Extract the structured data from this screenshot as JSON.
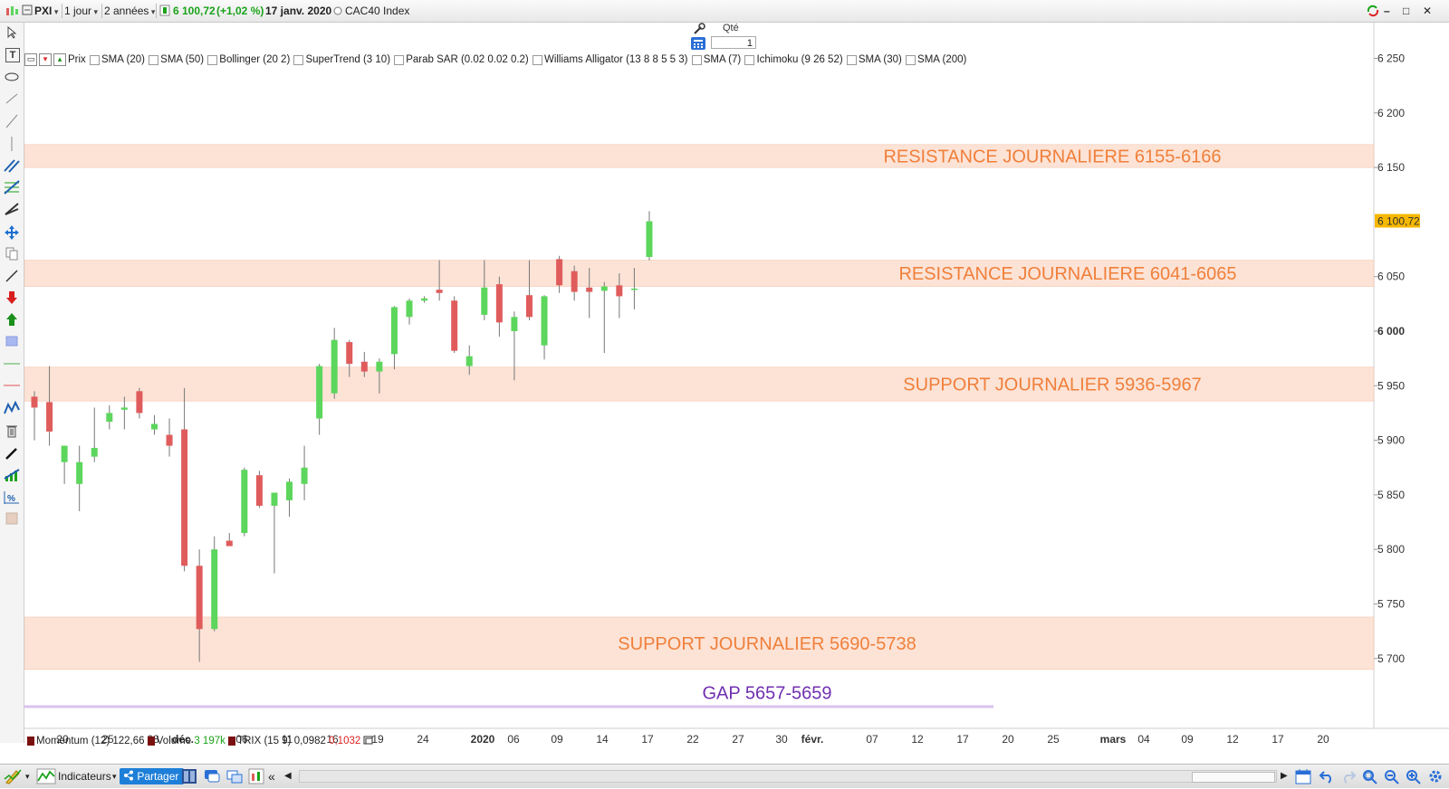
{
  "toolbar": {
    "symbol": "PXI",
    "period": "1 jour",
    "range": "2 années",
    "price": "6 100,72",
    "change": "(+1,02 %)",
    "date": "17 janv. 2020",
    "instrument": "CAC40 Index",
    "minimize": "–",
    "maximize": "□",
    "close": "✕"
  },
  "order": {
    "qty_label": "Qté",
    "qty_value": "1"
  },
  "indicators": [
    "Prix",
    "SMA (20)",
    "SMA (50)",
    "Bollinger (20 2)",
    "SuperTrend (3 10)",
    "Parab SAR (0.02 0.02 0.2)",
    "Williams Alligator (13 8 8 5 5 3)",
    "SMA (7)",
    "Ichimoku (9 26 52)",
    "SMA (30)",
    "SMA (200)"
  ],
  "bottom_indicators": {
    "momentum": "Momentum (12)",
    "momentum_val": "122,66",
    "volume": "Volume",
    "volume_val": "3 197k",
    "trix": "TRIX (15 9)",
    "trix_val1": "0,0982",
    "trix_val2": "0,1032"
  },
  "bottom_toolbar": {
    "indicators": "Indicateurs",
    "share": "Partager"
  },
  "colors": {
    "up": "#5cd65c",
    "down": "#e05c5c",
    "band": "#fbd9c8",
    "band_text": "#f07f3a",
    "gap_text": "#7030b0",
    "gap_line": "#c9a8e0",
    "price_tag": "#f5b800"
  },
  "chart_data": {
    "type": "candlestick",
    "y_axis": {
      "ticks": [
        "6 250",
        "6 200",
        "6 150",
        "6 100,72",
        "6 050",
        "6 000",
        "5 950",
        "5 900",
        "5 850",
        "5 800",
        "5 750",
        "5 700"
      ],
      "range": [
        5650,
        6260
      ]
    },
    "x_labels": [
      "20",
      "25",
      "28",
      "déc.",
      "06",
      "11",
      "16",
      "19",
      "24",
      "2020",
      "06",
      "09",
      "14",
      "17",
      "22",
      "27",
      "30",
      "févr.",
      "07",
      "12",
      "17",
      "20",
      "25",
      "mars",
      "04",
      "09",
      "12",
      "17",
      "20"
    ],
    "bands": [
      {
        "label": "RESISTANCE JOURNALIERE 6155-6166",
        "low": 6155,
        "high": 6166
      },
      {
        "label": "RESISTANCE JOURNALIERE 6041-6065",
        "low": 6041,
        "high": 6065
      },
      {
        "label": "SUPPORT JOURNALIER 5936-5967",
        "low": 5936,
        "high": 5967
      },
      {
        "label": "SUPPORT JOURNALIER 5690-5738",
        "low": 5690,
        "high": 5738
      }
    ],
    "gap": {
      "label": "GAP 5657-5659",
      "low": 5657,
      "high": 5659
    },
    "last_price": 6100.72,
    "candles": [
      {
        "o": 5940,
        "h": 5945,
        "l": 5900,
        "c": 5930
      },
      {
        "o": 5935,
        "h": 5968,
        "l": 5895,
        "c": 5908
      },
      {
        "o": 5880,
        "h": 5895,
        "l": 5860,
        "c": 5895
      },
      {
        "o": 5860,
        "h": 5895,
        "l": 5835,
        "c": 5880
      },
      {
        "o": 5885,
        "h": 5930,
        "l": 5880,
        "c": 5893
      },
      {
        "o": 5917,
        "h": 5932,
        "l": 5910,
        "c": 5925
      },
      {
        "o": 5928,
        "h": 5940,
        "l": 5910,
        "c": 5930
      },
      {
        "o": 5945,
        "h": 5948,
        "l": 5920,
        "c": 5925
      },
      {
        "o": 5910,
        "h": 5923,
        "l": 5905,
        "c": 5915
      },
      {
        "o": 5905,
        "h": 5920,
        "l": 5885,
        "c": 5895
      },
      {
        "o": 5910,
        "h": 5948,
        "l": 5780,
        "c": 5785
      },
      {
        "o": 5785,
        "h": 5800,
        "l": 5697,
        "c": 5727
      },
      {
        "o": 5727,
        "h": 5812,
        "l": 5725,
        "c": 5800
      },
      {
        "o": 5808,
        "h": 5815,
        "l": 5805,
        "c": 5803
      },
      {
        "o": 5815,
        "h": 5875,
        "l": 5812,
        "c": 5873
      },
      {
        "o": 5868,
        "h": 5872,
        "l": 5838,
        "c": 5840
      },
      {
        "o": 5840,
        "h": 5852,
        "l": 5778,
        "c": 5852
      },
      {
        "o": 5845,
        "h": 5865,
        "l": 5830,
        "c": 5862
      },
      {
        "o": 5860,
        "h": 5895,
        "l": 5845,
        "c": 5875
      },
      {
        "o": 5920,
        "h": 5970,
        "l": 5905,
        "c": 5968
      },
      {
        "o": 5943,
        "h": 6003,
        "l": 5938,
        "c": 5992
      },
      {
        "o": 5990,
        "h": 5992,
        "l": 5958,
        "c": 5970
      },
      {
        "o": 5972,
        "h": 5981,
        "l": 5958,
        "c": 5963
      },
      {
        "o": 5963,
        "h": 5975,
        "l": 5943,
        "c": 5972
      },
      {
        "o": 5979,
        "h": 6023,
        "l": 5965,
        "c": 6022
      },
      {
        "o": 6013,
        "h": 6030,
        "l": 6006,
        "c": 6028
      },
      {
        "o": 6028,
        "h": 6032,
        "l": 6026,
        "c": 6030
      },
      {
        "o": 6038,
        "h": 6065,
        "l": 6028,
        "c": 6035
      },
      {
        "o": 6028,
        "h": 6032,
        "l": 5980,
        "c": 5982
      },
      {
        "o": 5968,
        "h": 5987,
        "l": 5960,
        "c": 5977
      },
      {
        "o": 6015,
        "h": 6065,
        "l": 6010,
        "c": 6040
      },
      {
        "o": 6043,
        "h": 6050,
        "l": 5995,
        "c": 6008
      },
      {
        "o": 6000,
        "h": 6018,
        "l": 5955,
        "c": 6013
      },
      {
        "o": 6033,
        "h": 6065,
        "l": 6010,
        "c": 6013
      },
      {
        "o": 5987,
        "h": 6033,
        "l": 5974,
        "c": 6032
      },
      {
        "o": 6066,
        "h": 6069,
        "l": 6035,
        "c": 6042
      },
      {
        "o": 6055,
        "h": 6060,
        "l": 6028,
        "c": 6036
      },
      {
        "o": 6040,
        "h": 6058,
        "l": 6012,
        "c": 6036
      },
      {
        "o": 6037,
        "h": 6045,
        "l": 5980,
        "c": 6041
      },
      {
        "o": 6042,
        "h": 6053,
        "l": 6012,
        "c": 6032
      },
      {
        "o": 6038,
        "h": 6058,
        "l": 6020,
        "c": 6039
      },
      {
        "o": 6068,
        "h": 6110,
        "l": 6065,
        "c": 6100.72
      }
    ]
  }
}
